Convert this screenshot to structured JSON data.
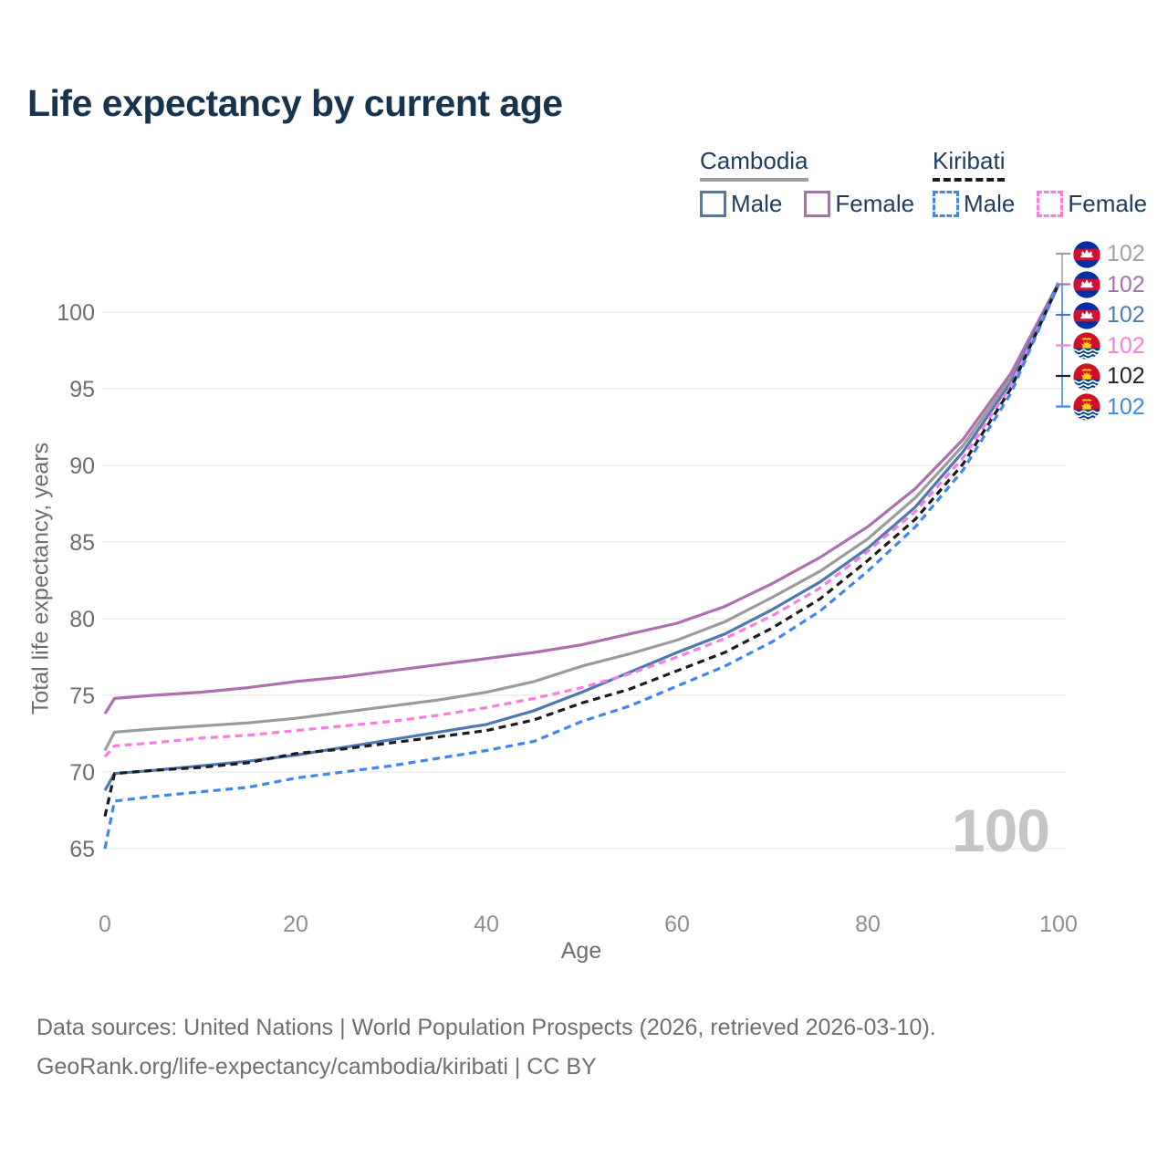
{
  "page": {
    "title": "Life expectancy by current age",
    "watermark_age": "100",
    "footer_line1": "Data sources: United Nations | World Population Prospects (2026, retrieved 2026-03-10).",
    "footer_line2": "GeoRank.org/life-expectancy/cambodia/kiribati | CC BY"
  },
  "colors": {
    "title_navy": "#17344f",
    "legend_text": "#1f3d5c",
    "gridline": "#ebebeb",
    "cambodia_total": "#9b9b9b",
    "cambodia_female": "#ae6fae",
    "cambodia_male": "#4d79b3",
    "kiribati_total": "#1c1c1c",
    "kiribati_female": "#fb7be0",
    "kiribati_male": "#3f86f0",
    "watermark_gray": "#c5c5c5"
  },
  "legend": {
    "groups": [
      {
        "name": "Cambodia",
        "underline_style": "solid",
        "underline_color": "#9e9e9e",
        "items": [
          {
            "label": "Male",
            "color": "#4d79b3",
            "dash": false
          },
          {
            "label": "Female",
            "color": "#ae6fae",
            "dash": false
          }
        ]
      },
      {
        "name": "Kiribati",
        "underline_style": "dashed",
        "underline_color": "#1a1a1a",
        "items": [
          {
            "label": "Male",
            "color": "#3f86f0",
            "dash": true
          },
          {
            "label": "Female",
            "color": "#fb7be0",
            "dash": true
          }
        ]
      }
    ]
  },
  "right_labels": [
    {
      "flag": "cambodia",
      "series": "Cambodia Total",
      "value": "102",
      "color": "#a0a0a0"
    },
    {
      "flag": "cambodia",
      "series": "Cambodia Female",
      "value": "102",
      "color": "#a86fae"
    },
    {
      "flag": "cambodia",
      "series": "Cambodia Male",
      "value": "102",
      "color": "#4d79b3"
    },
    {
      "flag": "kiribati",
      "series": "Kiribati Female",
      "value": "102",
      "color": "#fb7be0"
    },
    {
      "flag": "kiribati",
      "series": "Kiribati Total",
      "value": "102",
      "color": "#222222"
    },
    {
      "flag": "kiribati",
      "series": "Kiribati Male",
      "value": "102",
      "color": "#3f86f0"
    }
  ],
  "chart_data": {
    "type": "line",
    "title": "Life expectancy by current age",
    "xlabel": "Age",
    "ylabel": "Total life expectancy, years",
    "xlim": [
      0,
      100
    ],
    "ylim": [
      65,
      102.5
    ],
    "xticks": [
      0,
      20,
      40,
      60,
      80,
      100
    ],
    "yticks": [
      65,
      70,
      75,
      80,
      85,
      90,
      95,
      100
    ],
    "grid": "horizontal",
    "legend_position": "top-right",
    "hovered_age": 100,
    "x": [
      0,
      1,
      5,
      10,
      15,
      20,
      25,
      30,
      35,
      40,
      45,
      50,
      55,
      60,
      65,
      70,
      75,
      80,
      85,
      90,
      95,
      100
    ],
    "series": [
      {
        "name": "Cambodia Total",
        "color": "#9b9b9b",
        "dash": "solid",
        "values": [
          71.4,
          72.6,
          72.8,
          73.0,
          73.2,
          73.5,
          73.9,
          74.3,
          74.7,
          75.2,
          75.9,
          76.9,
          77.7,
          78.6,
          79.8,
          81.4,
          83.1,
          85.2,
          87.9,
          91.3,
          95.7,
          101.9
        ]
      },
      {
        "name": "Cambodia Female",
        "color": "#ae6fae",
        "dash": "solid",
        "values": [
          73.8,
          74.8,
          75.0,
          75.2,
          75.5,
          75.9,
          76.2,
          76.6,
          77.0,
          77.4,
          77.8,
          78.3,
          79.0,
          79.7,
          80.8,
          82.3,
          84.0,
          86.0,
          88.5,
          91.7,
          96.0,
          101.9
        ]
      },
      {
        "name": "Cambodia Male",
        "color": "#4d79b3",
        "dash": "solid",
        "values": [
          68.8,
          69.9,
          70.1,
          70.4,
          70.7,
          71.1,
          71.6,
          72.1,
          72.6,
          73.1,
          74.0,
          75.2,
          76.5,
          77.8,
          79.0,
          80.6,
          82.4,
          84.6,
          87.3,
          90.9,
          95.4,
          101.9
        ]
      },
      {
        "name": "Kiribati Female",
        "color": "#fb7be0",
        "dash": "dashed",
        "values": [
          71.0,
          71.7,
          71.9,
          72.2,
          72.4,
          72.7,
          73.0,
          73.3,
          73.7,
          74.2,
          74.8,
          75.5,
          76.4,
          77.5,
          78.7,
          80.2,
          82.0,
          84.4,
          87.0,
          90.5,
          95.2,
          101.8
        ]
      },
      {
        "name": "Kiribati Total",
        "color": "#1c1c1c",
        "dash": "dashed",
        "values": [
          67.1,
          69.9,
          70.1,
          70.3,
          70.6,
          71.2,
          71.5,
          71.9,
          72.3,
          72.7,
          73.4,
          74.5,
          75.4,
          76.6,
          77.8,
          79.4,
          81.3,
          83.8,
          86.5,
          90.1,
          95.0,
          101.8
        ]
      },
      {
        "name": "Kiribati Male",
        "color": "#3f86f0",
        "dash": "dashed",
        "values": [
          65.0,
          68.1,
          68.4,
          68.7,
          69.0,
          69.6,
          70.0,
          70.4,
          70.9,
          71.4,
          72.0,
          73.3,
          74.3,
          75.6,
          76.9,
          78.5,
          80.5,
          83.1,
          86.0,
          89.7,
          94.7,
          101.8
        ]
      }
    ]
  }
}
